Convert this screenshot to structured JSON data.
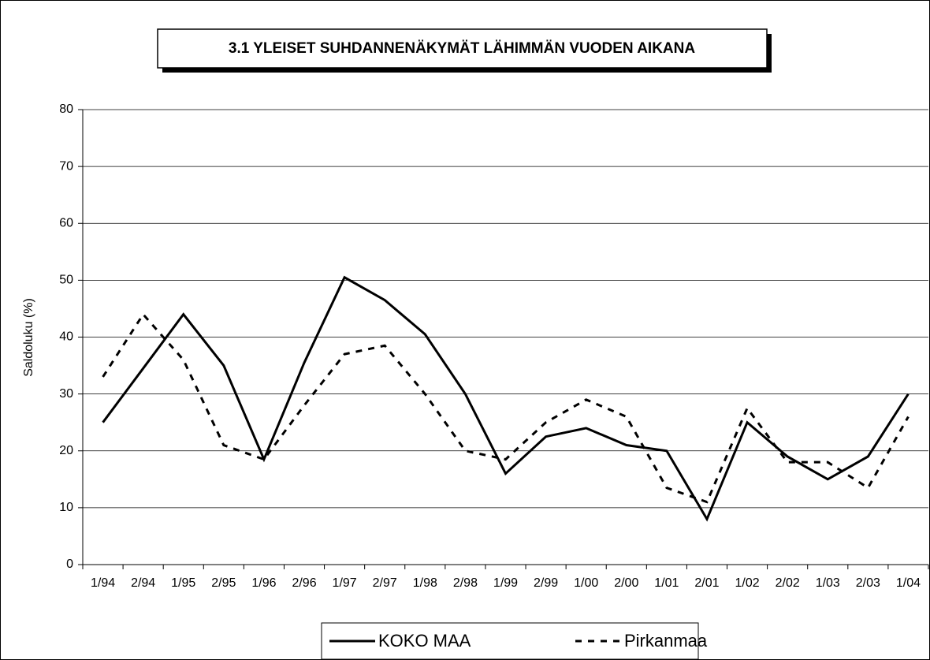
{
  "chart_data": {
    "type": "line",
    "title": "3.1 YLEISET SUHDANNENÄKYMÄT LÄHIMMÄN VUODEN AIKANA",
    "y_label": "Saldoluku (%)",
    "categories": [
      "1/94",
      "2/94",
      "1/95",
      "2/95",
      "1/96",
      "2/96",
      "1/97",
      "2/97",
      "1/98",
      "2/98",
      "1/99",
      "2/99",
      "1/00",
      "2/00",
      "1/01",
      "2/01",
      "1/02",
      "2/02",
      "1/03",
      "2/03",
      "1/04"
    ],
    "series": [
      {
        "name": "KOKO MAA",
        "color": "#000000",
        "dash": "solid",
        "values": [
          25,
          34.5,
          44,
          35,
          18.5,
          35.5,
          50.5,
          46.5,
          40.5,
          30,
          16,
          22.5,
          24,
          21,
          20,
          8,
          25,
          19,
          15,
          19,
          30
        ]
      },
      {
        "name": "Pirkanmaa",
        "color": "#000000",
        "dash": "dashed",
        "values": [
          33,
          44,
          36,
          21,
          18.5,
          28,
          37,
          38.5,
          30,
          20,
          18.5,
          25,
          29,
          26,
          13.5,
          11,
          27.5,
          18,
          18,
          13.5,
          26
        ]
      }
    ],
    "ylim": [
      0,
      80
    ],
    "yticks": [
      0,
      10,
      20,
      30,
      40,
      50,
      60,
      70,
      80
    ],
    "grid": true,
    "legend": "bottom"
  }
}
